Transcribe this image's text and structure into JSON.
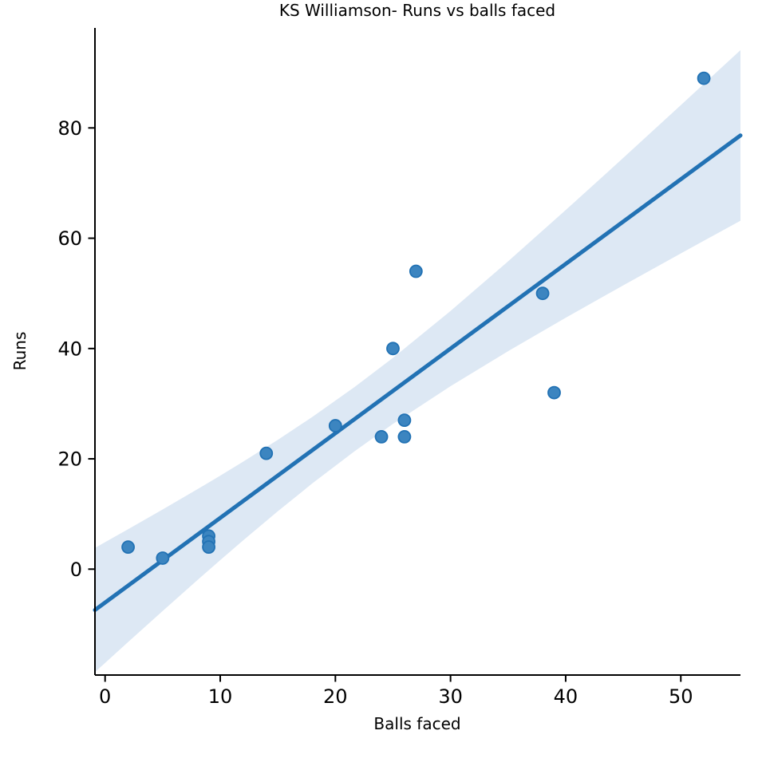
{
  "chart_data": {
    "type": "scatter",
    "title": "KS Williamson- Runs vs balls faced",
    "xlabel": "Balls faced",
    "ylabel": "Runs",
    "points": [
      {
        "x": 2,
        "y": 4
      },
      {
        "x": 5,
        "y": 2
      },
      {
        "x": 9,
        "y": 6
      },
      {
        "x": 9,
        "y": 5
      },
      {
        "x": 9,
        "y": 4
      },
      {
        "x": 14,
        "y": 21
      },
      {
        "x": 20,
        "y": 26
      },
      {
        "x": 24,
        "y": 24
      },
      {
        "x": 25,
        "y": 40
      },
      {
        "x": 26,
        "y": 27
      },
      {
        "x": 26,
        "y": 24
      },
      {
        "x": 27,
        "y": 54
      },
      {
        "x": 38,
        "y": 50
      },
      {
        "x": 39,
        "y": 32
      },
      {
        "x": 52,
        "y": 89
      }
    ],
    "regression": {
      "slope": 1.535,
      "intercept": -6.06,
      "x_start": -0.88,
      "x_end": 55.18
    },
    "ci_band": {
      "x": [
        -0.88,
        2,
        5,
        8,
        10,
        12,
        15,
        18,
        21.67,
        25,
        30,
        35,
        40,
        45,
        50,
        55.18
      ],
      "upper": [
        3.85,
        7.24,
        10.82,
        14.47,
        16.95,
        19.5,
        23.44,
        27.6,
        33.02,
        38.3,
        46.81,
        55.81,
        65.1,
        74.56,
        84.13,
        94.1
      ],
      "lower": [
        -18.67,
        -13.21,
        -7.59,
        -2.02,
        1.63,
        5.23,
        10.49,
        15.55,
        21.38,
        26.33,
        33.17,
        39.52,
        45.58,
        51.46,
        57.25,
        63.18
      ]
    },
    "x_ticks": [
      0,
      10,
      20,
      30,
      40,
      50
    ],
    "y_ticks": [
      0,
      20,
      40,
      60,
      80
    ],
    "xlim": [
      -0.88,
      55.18
    ],
    "ylim": [
      -19.2,
      98.13
    ],
    "grid": false,
    "legend": false,
    "colors": {
      "line": "#2272b4",
      "point_fill": "#3c85c0",
      "point_edge": "#2272b4",
      "band": "#dde8f4",
      "axis": "#000000"
    },
    "marker_radius": 7.5
  }
}
